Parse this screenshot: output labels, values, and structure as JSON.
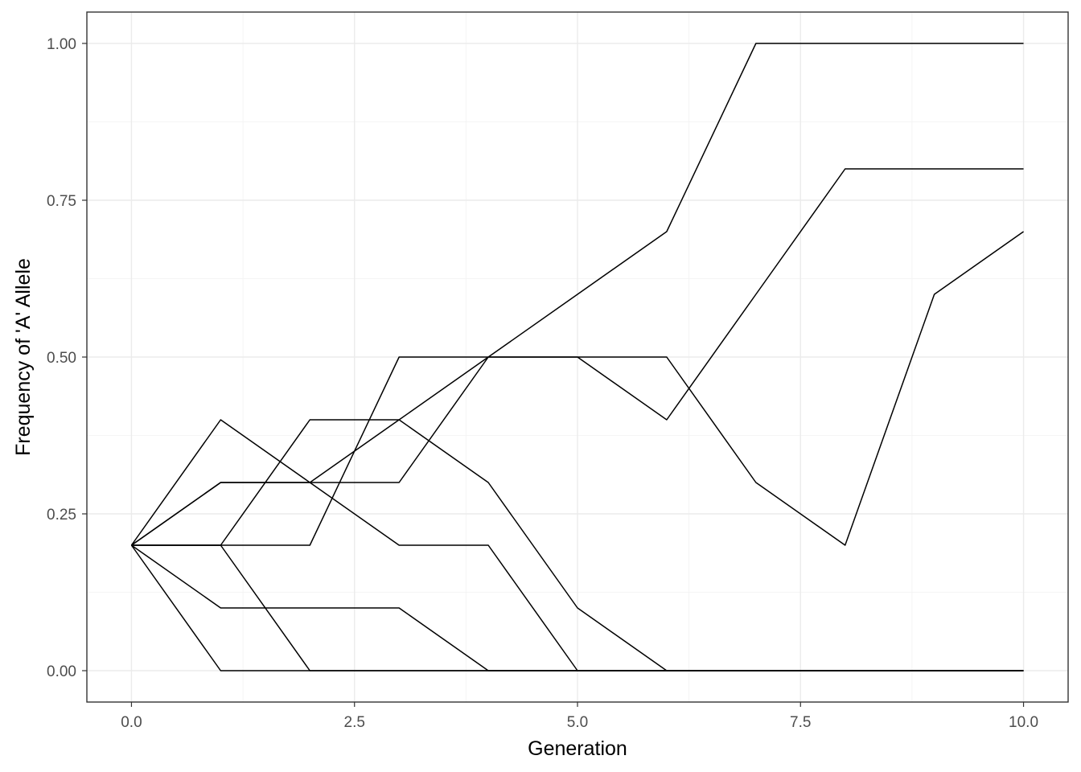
{
  "chart_data": {
    "type": "line",
    "title": "",
    "xlabel": "Generation",
    "ylabel": "Frequency of 'A' Allele",
    "xlim": [
      -0.5,
      10.5
    ],
    "ylim": [
      -0.05,
      1.05
    ],
    "x_ticks": [
      0,
      2.5,
      5,
      7.5,
      10
    ],
    "x_tick_labels": [
      "0.0",
      "2.5",
      "5.0",
      "7.5",
      "10.0"
    ],
    "y_ticks": [
      0,
      0.25,
      0.5,
      0.75,
      1
    ],
    "y_tick_labels": [
      "0.00",
      "0.25",
      "0.50",
      "0.75",
      "1.00"
    ],
    "grid": true,
    "x": [
      0,
      1,
      2,
      3,
      4,
      5,
      6,
      7,
      8,
      9,
      10
    ],
    "series": [
      {
        "values": [
          0.2,
          0.3,
          0.3,
          0.4,
          0.5,
          0.6,
          0.7,
          1.0,
          1.0,
          1.0,
          1.0
        ]
      },
      {
        "values": [
          0.2,
          0.2,
          0.2,
          0.5,
          0.5,
          0.5,
          0.4,
          0.6,
          0.8,
          0.8,
          0.8
        ]
      },
      {
        "values": [
          0.2,
          0.2,
          0.4,
          0.4,
          0.3,
          0.1,
          0.0,
          0.0,
          0.0,
          0.0,
          0.0
        ]
      },
      {
        "values": [
          0.2,
          0.4,
          0.3,
          0.2,
          0.2,
          0.0,
          0.0,
          0.0,
          0.0,
          0.0,
          0.0
        ]
      },
      {
        "values": [
          0.2,
          0.1,
          0.1,
          0.1,
          0.0,
          0.0,
          0.0,
          0.0,
          0.0,
          0.0,
          0.0
        ]
      },
      {
        "values": [
          0.2,
          0.0,
          0.0,
          0.0,
          0.0,
          0.0,
          0.0,
          0.0,
          0.0,
          0.0,
          0.0
        ]
      },
      {
        "values": [
          0.2,
          0.2,
          0.0,
          0.0,
          0.0,
          0.0,
          0.0,
          0.0,
          0.0,
          0.0,
          0.0
        ]
      },
      {
        "values": [
          0.2,
          0.3,
          0.3,
          0.3,
          0.5,
          0.5,
          0.5,
          0.3,
          0.2,
          0.6,
          0.7
        ]
      }
    ]
  }
}
